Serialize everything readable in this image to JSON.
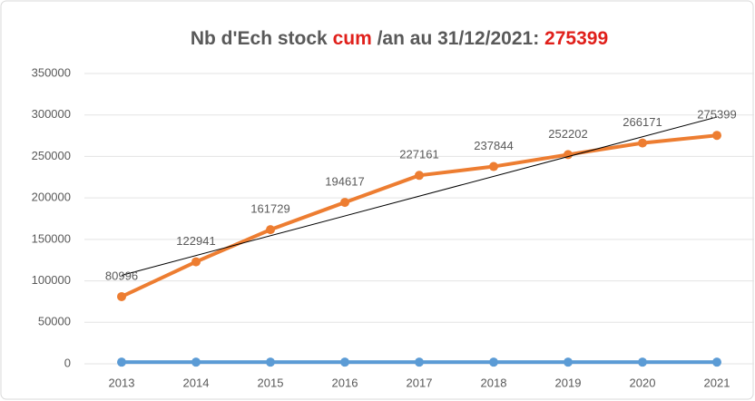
{
  "chart_data": {
    "type": "line",
    "title_parts": [
      "Nb d'Ech stock ",
      "cum",
      " /an au 31/12/2021: ",
      "275399"
    ],
    "title_colors": [
      "#595959",
      "#e0201b",
      "#595959",
      "#e0201b"
    ],
    "categories": [
      "2013",
      "2014",
      "2015",
      "2016",
      "2017",
      "2018",
      "2019",
      "2020",
      "2021"
    ],
    "series": [
      {
        "color": "#5b9bd5",
        "values": [
          2000,
          2000,
          2000,
          2000,
          2000,
          2000,
          2000,
          2000,
          2000
        ]
      },
      {
        "color": "#ed7d31",
        "values": [
          80996,
          122941,
          161729,
          194617,
          227161,
          237844,
          252202,
          266171,
          275399
        ],
        "data_labels": true,
        "trendline": "linear",
        "trendline_color": "#000000"
      }
    ],
    "ylim": [
      0,
      350000
    ],
    "yticks": [
      0,
      50000,
      100000,
      150000,
      200000,
      250000,
      300000,
      350000
    ],
    "grid": true
  }
}
